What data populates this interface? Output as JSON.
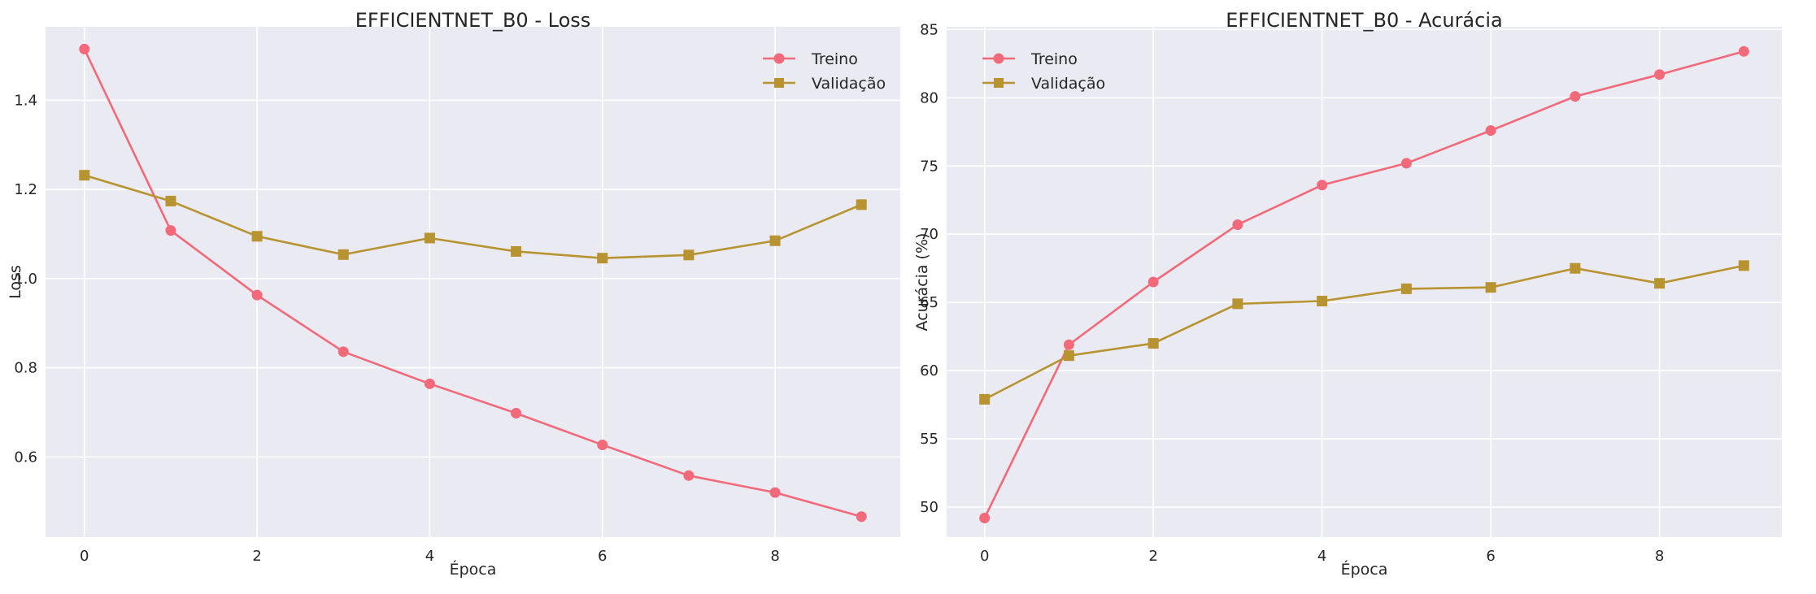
{
  "colors": {
    "background": "#ffffff",
    "plot_bg": "#eaeaf2",
    "grid": "#ffffff",
    "series_train": "#f2697a",
    "series_val": "#b89331"
  },
  "chart_data": [
    {
      "type": "line",
      "title": "EFFICIENTNET_B0 - Loss",
      "xlabel": "Época",
      "ylabel": "Loss",
      "xlim": [
        -0.45,
        9.45
      ],
      "ylim": [
        0.42,
        1.565
      ],
      "x_ticks": [
        0,
        2,
        4,
        6,
        8
      ],
      "x_tick_labels": [
        "0",
        "2",
        "4",
        "6",
        "8"
      ],
      "y_ticks": [
        0.6,
        0.8,
        1.0,
        1.2,
        1.4
      ],
      "y_tick_labels": [
        "0.6",
        "0.8",
        "1.0",
        "1.2",
        "1.4"
      ],
      "legend_position": "upper right",
      "grid": true,
      "x": [
        0,
        1,
        2,
        3,
        4,
        5,
        6,
        7,
        8,
        9
      ],
      "series": [
        {
          "name": "Treino",
          "marker": "circle",
          "color": "#f2697a",
          "values": [
            1.515,
            1.108,
            0.963,
            0.836,
            0.764,
            0.698,
            0.627,
            0.558,
            0.52,
            0.466
          ]
        },
        {
          "name": "Validação",
          "marker": "square",
          "color": "#b89331",
          "values": [
            1.232,
            1.174,
            1.095,
            1.054,
            1.091,
            1.061,
            1.046,
            1.053,
            1.085,
            1.166
          ]
        }
      ]
    },
    {
      "type": "line",
      "title": "EFFICIENTNET_B0 - Acurácia",
      "xlabel": "Época",
      "ylabel": "Acurácia (%)",
      "xlim": [
        -0.45,
        9.45
      ],
      "ylim": [
        47.8,
        85.2
      ],
      "x_ticks": [
        0,
        2,
        4,
        6,
        8
      ],
      "x_tick_labels": [
        "0",
        "2",
        "4",
        "6",
        "8"
      ],
      "y_ticks": [
        50,
        55,
        60,
        65,
        70,
        75,
        80,
        85
      ],
      "y_tick_labels": [
        "50",
        "55",
        "60",
        "65",
        "70",
        "75",
        "80",
        "85"
      ],
      "legend_position": "upper left",
      "grid": true,
      "x": [
        0,
        1,
        2,
        3,
        4,
        5,
        6,
        7,
        8,
        9
      ],
      "series": [
        {
          "name": "Treino",
          "marker": "circle",
          "color": "#f2697a",
          "values": [
            49.2,
            61.9,
            66.5,
            70.7,
            73.6,
            75.2,
            77.6,
            80.1,
            81.7,
            83.4
          ]
        },
        {
          "name": "Validação",
          "marker": "square",
          "color": "#b89331",
          "values": [
            57.9,
            61.1,
            62.0,
            64.9,
            65.1,
            66.0,
            66.1,
            67.5,
            66.4,
            67.7
          ]
        }
      ]
    }
  ]
}
